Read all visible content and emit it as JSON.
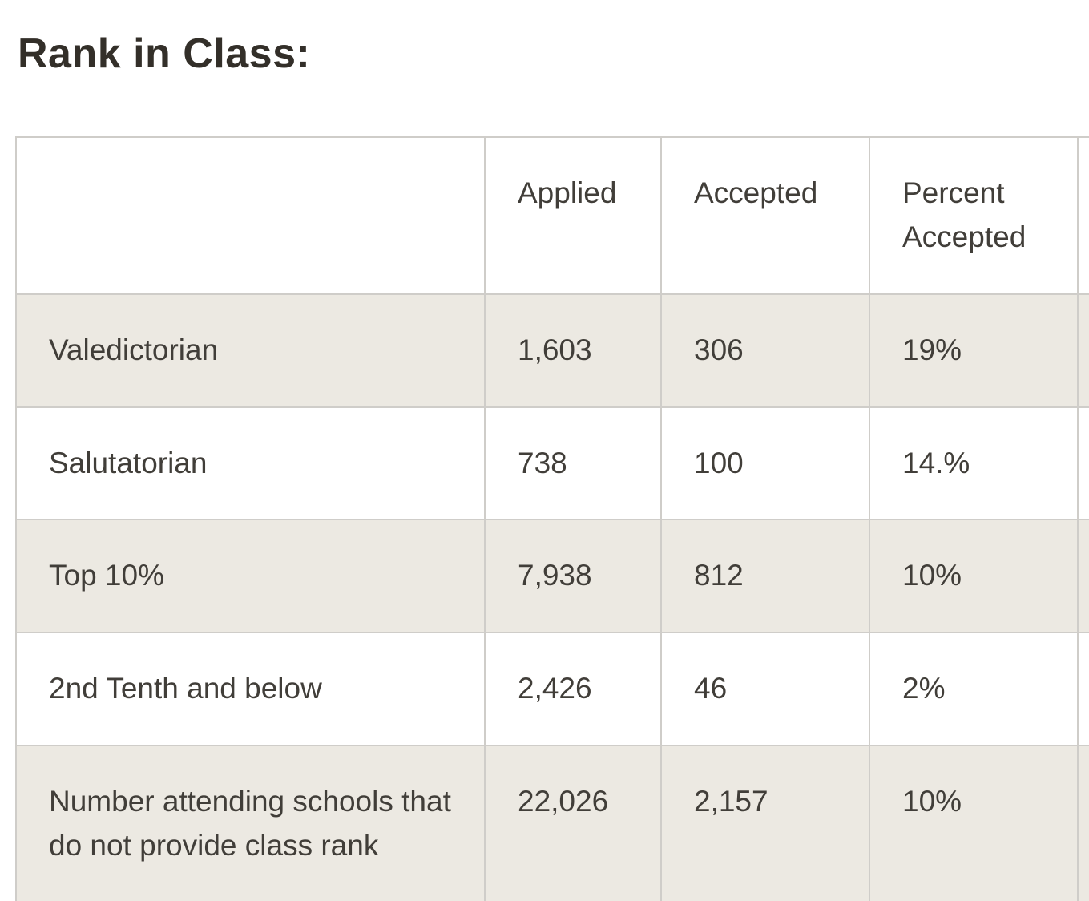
{
  "page": {
    "title": "Rank in Class:"
  },
  "table": {
    "columns": [
      "",
      "Applied",
      "Accepted",
      "Percent Accepted",
      ""
    ],
    "rows": [
      {
        "label": "Valedictorian",
        "applied": "1,603",
        "accepted": "306",
        "percent_accepted": "19%"
      },
      {
        "label": "Salutatorian",
        "applied": "738",
        "accepted": "100",
        "percent_accepted": "14.%"
      },
      {
        "label": "Top 10%",
        "applied": "7,938",
        "accepted": "812",
        "percent_accepted": "10%"
      },
      {
        "label": "2nd Tenth and below",
        "applied": "2,426",
        "accepted": "46",
        "percent_accepted": "2%"
      },
      {
        "label": "Number attending schools that do not provide class rank",
        "applied": "22,026",
        "accepted": "2,157",
        "percent_accepted": "10%"
      }
    ]
  },
  "colors": {
    "row_shade": "#ece9e2",
    "border": "#cfcdc9",
    "body_text": "#413e39",
    "title_text": "#332f29",
    "background": "#ffffff"
  },
  "chart_data": {
    "type": "table",
    "title": "Rank in Class:",
    "columns": [
      "",
      "Applied",
      "Accepted",
      "Percent Accepted"
    ],
    "rows": [
      [
        "Valedictorian",
        1603,
        306,
        "19%"
      ],
      [
        "Salutatorian",
        738,
        100,
        "14.%"
      ],
      [
        "Top 10%",
        7938,
        812,
        "10%"
      ],
      [
        "2nd Tenth and below",
        2426,
        46,
        "2%"
      ],
      [
        "Number attending schools that do not provide class rank",
        22026,
        2157,
        "10%"
      ]
    ]
  }
}
